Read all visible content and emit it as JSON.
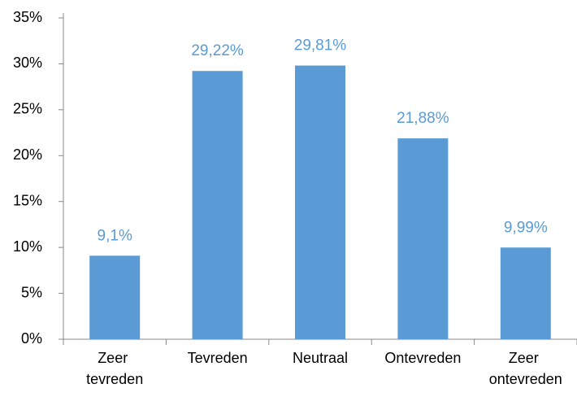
{
  "chart_data": {
    "type": "bar",
    "categories": [
      "Zeer tevreden",
      "Tevreden",
      "Neutraal",
      "Ontevreden",
      "Zeer ontevreden"
    ],
    "values": [
      9.1,
      29.22,
      29.81,
      21.88,
      9.99
    ],
    "value_labels": [
      "9,1%",
      "29,22%",
      "29,81%",
      "21,88%",
      "9,99%"
    ],
    "color": "#5b9bd5",
    "ylim": [
      0,
      35
    ],
    "yticks": [
      {
        "value": 0,
        "label": "0%"
      },
      {
        "value": 5,
        "label": "5%"
      },
      {
        "value": 10,
        "label": "10%"
      },
      {
        "value": 15,
        "label": "15%"
      },
      {
        "value": 20,
        "label": "20%"
      },
      {
        "value": 25,
        "label": "25%"
      },
      {
        "value": 30,
        "label": "30%"
      },
      {
        "value": 35,
        "label": "35%"
      }
    ],
    "grid": false
  }
}
